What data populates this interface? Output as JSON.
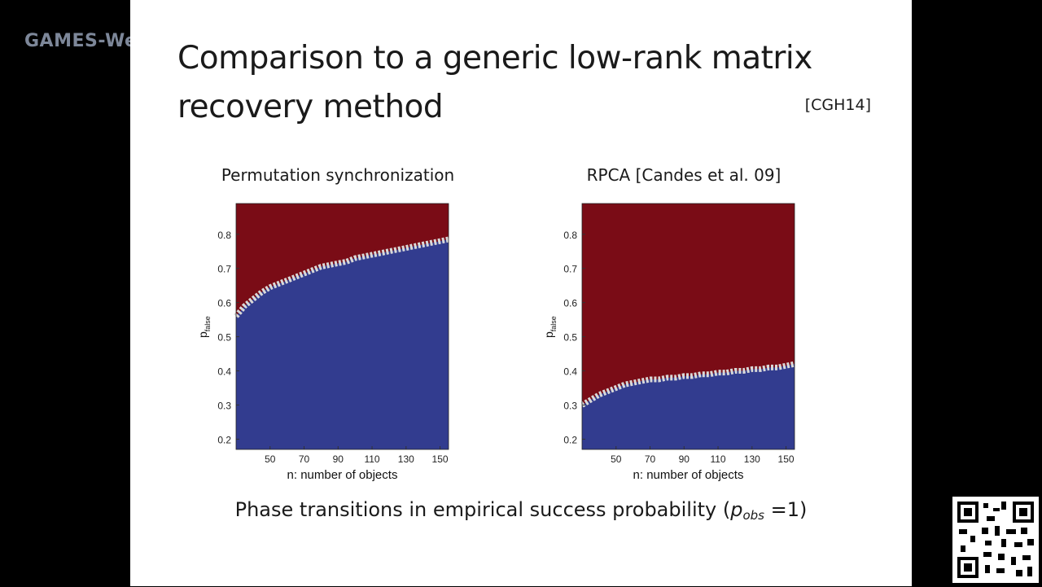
{
  "watermark": "GAMES-We",
  "slide": {
    "title_line1": "Comparison to a generic low-rank matrix",
    "title_line2": "recovery method",
    "citation": "[CGH14]",
    "caption_prefix": "Phase transitions in empirical success probability (",
    "caption_var": "p",
    "caption_sub": "obs",
    "caption_suffix": " =1)"
  },
  "colors": {
    "failure_region": "#7a0c16",
    "success_region": "#323c8f",
    "boundary": "#d9d9d9"
  },
  "chart_data": [
    {
      "type": "heatmap",
      "title": "Permutation synchronization",
      "xlabel": "n: number of objects",
      "ylabel": "p",
      "ylabel_sub": "false",
      "xticks": [
        "50",
        "70",
        "90",
        "110",
        "130",
        "150"
      ],
      "yticks": [
        "0.2",
        "0.3",
        "0.4",
        "0.5",
        "0.6",
        "0.7",
        "0.8"
      ],
      "xlim": [
        30,
        155
      ],
      "ylim": [
        0.17,
        0.89
      ],
      "boundary_x": [
        30,
        35,
        40,
        45,
        50,
        55,
        60,
        65,
        70,
        75,
        80,
        85,
        90,
        95,
        100,
        105,
        110,
        115,
        120,
        125,
        130,
        135,
        140,
        145,
        150,
        155
      ],
      "boundary_y": [
        0.56,
        0.59,
        0.61,
        0.63,
        0.645,
        0.655,
        0.665,
        0.675,
        0.685,
        0.695,
        0.705,
        0.71,
        0.715,
        0.72,
        0.73,
        0.735,
        0.74,
        0.745,
        0.75,
        0.755,
        0.76,
        0.765,
        0.77,
        0.775,
        0.78,
        0.785
      ]
    },
    {
      "type": "heatmap",
      "title": "RPCA [Candes et al. 09]",
      "xlabel": "n: number of objects",
      "ylabel": "p",
      "ylabel_sub": "false",
      "xticks": [
        "50",
        "70",
        "90",
        "110",
        "130",
        "150"
      ],
      "yticks": [
        "0.2",
        "0.3",
        "0.4",
        "0.5",
        "0.6",
        "0.7",
        "0.8"
      ],
      "xlim": [
        30,
        155
      ],
      "ylim": [
        0.17,
        0.89
      ],
      "boundary_x": [
        30,
        35,
        40,
        45,
        50,
        55,
        60,
        65,
        70,
        75,
        80,
        85,
        90,
        95,
        100,
        105,
        110,
        115,
        120,
        125,
        130,
        135,
        140,
        145,
        150,
        155
      ],
      "boundary_y": [
        0.3,
        0.315,
        0.33,
        0.34,
        0.35,
        0.36,
        0.365,
        0.37,
        0.375,
        0.375,
        0.38,
        0.38,
        0.385,
        0.385,
        0.39,
        0.39,
        0.395,
        0.395,
        0.4,
        0.4,
        0.405,
        0.405,
        0.41,
        0.41,
        0.415,
        0.42
      ]
    }
  ]
}
